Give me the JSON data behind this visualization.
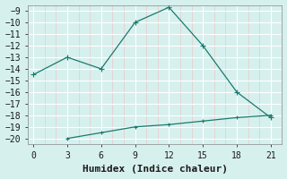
{
  "xlabel": "Humidex (Indice chaleur)",
  "background_color": "#d6f0ee",
  "major_grid_color": "#ffffff",
  "minor_grid_color": "#e8c8c8",
  "line_color": "#1a7a6e",
  "line1_x": [
    0,
    3,
    6,
    9,
    12,
    15,
    18,
    21
  ],
  "line1_y": [
    -14.5,
    -13.0,
    -14.0,
    -10.0,
    -8.7,
    -12.0,
    -16.0,
    -18.2
  ],
  "line2_x": [
    3,
    6,
    9,
    12,
    15,
    18,
    21
  ],
  "line2_y": [
    -20.0,
    -19.5,
    -19.0,
    -18.8,
    -18.5,
    -18.2,
    -18.0
  ],
  "xlim": [
    -0.5,
    22
  ],
  "ylim": [
    -20.5,
    -8.5
  ],
  "xticks": [
    0,
    3,
    6,
    9,
    12,
    15,
    18,
    21
  ],
  "yticks": [
    -20,
    -19,
    -18,
    -17,
    -16,
    -15,
    -14,
    -13,
    -12,
    -11,
    -10,
    -9
  ],
  "marker": "D",
  "marker_size": 2.5,
  "line_width": 0.9,
  "font_family": "monospace",
  "tick_fontsize": 7,
  "xlabel_fontsize": 8
}
